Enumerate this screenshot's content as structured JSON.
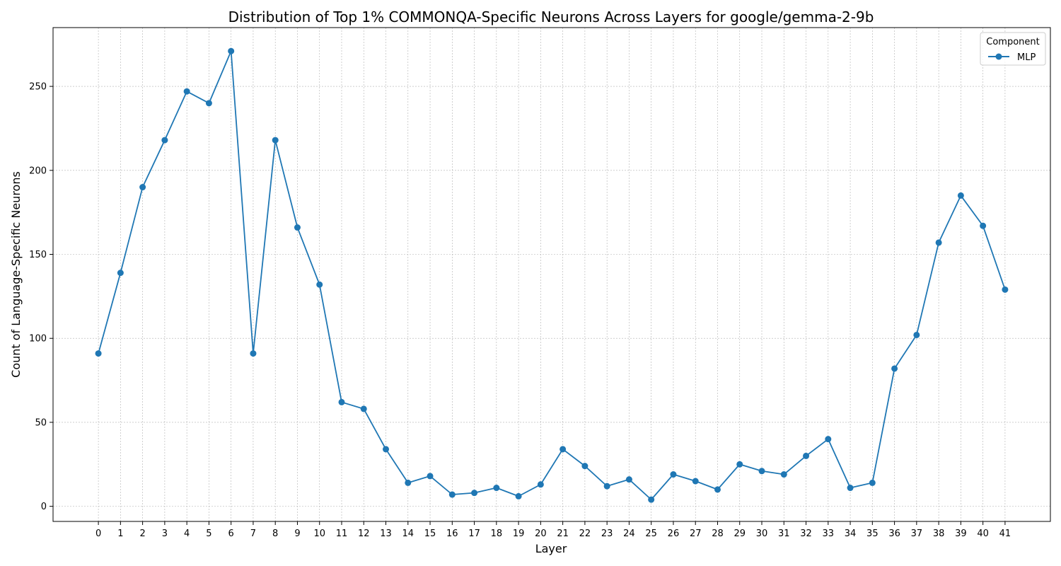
{
  "chart_data": {
    "type": "line",
    "title": "Distribution of Top 1% COMMONQA-Specific Neurons Across Layers for google/gemma-2-9b",
    "xlabel": "Layer",
    "ylabel": "Count of Language-Specific Neurons",
    "x": [
      0,
      1,
      2,
      3,
      4,
      5,
      6,
      7,
      8,
      9,
      10,
      11,
      12,
      13,
      14,
      15,
      16,
      17,
      18,
      19,
      20,
      21,
      22,
      23,
      24,
      25,
      26,
      27,
      28,
      29,
      30,
      31,
      32,
      33,
      34,
      35,
      36,
      37,
      38,
      39,
      40,
      41
    ],
    "series": [
      {
        "name": "MLP",
        "color": "#1f77b4",
        "values": [
          91,
          139,
          190,
          218,
          247,
          240,
          271,
          91,
          218,
          166,
          132,
          62,
          58,
          34,
          14,
          18,
          7,
          8,
          11,
          6,
          13,
          34,
          24,
          12,
          16,
          4,
          19,
          15,
          10,
          25,
          21,
          19,
          30,
          40,
          11,
          14,
          82,
          102,
          157,
          185,
          167,
          129
        ]
      }
    ],
    "xlim": [
      -2.05,
      43.05
    ],
    "ylim": [
      -9,
      285
    ],
    "yticks": [
      0,
      50,
      100,
      150,
      200,
      250
    ],
    "grid": true,
    "legend": {
      "title": "Component",
      "placement": "top-right"
    }
  }
}
